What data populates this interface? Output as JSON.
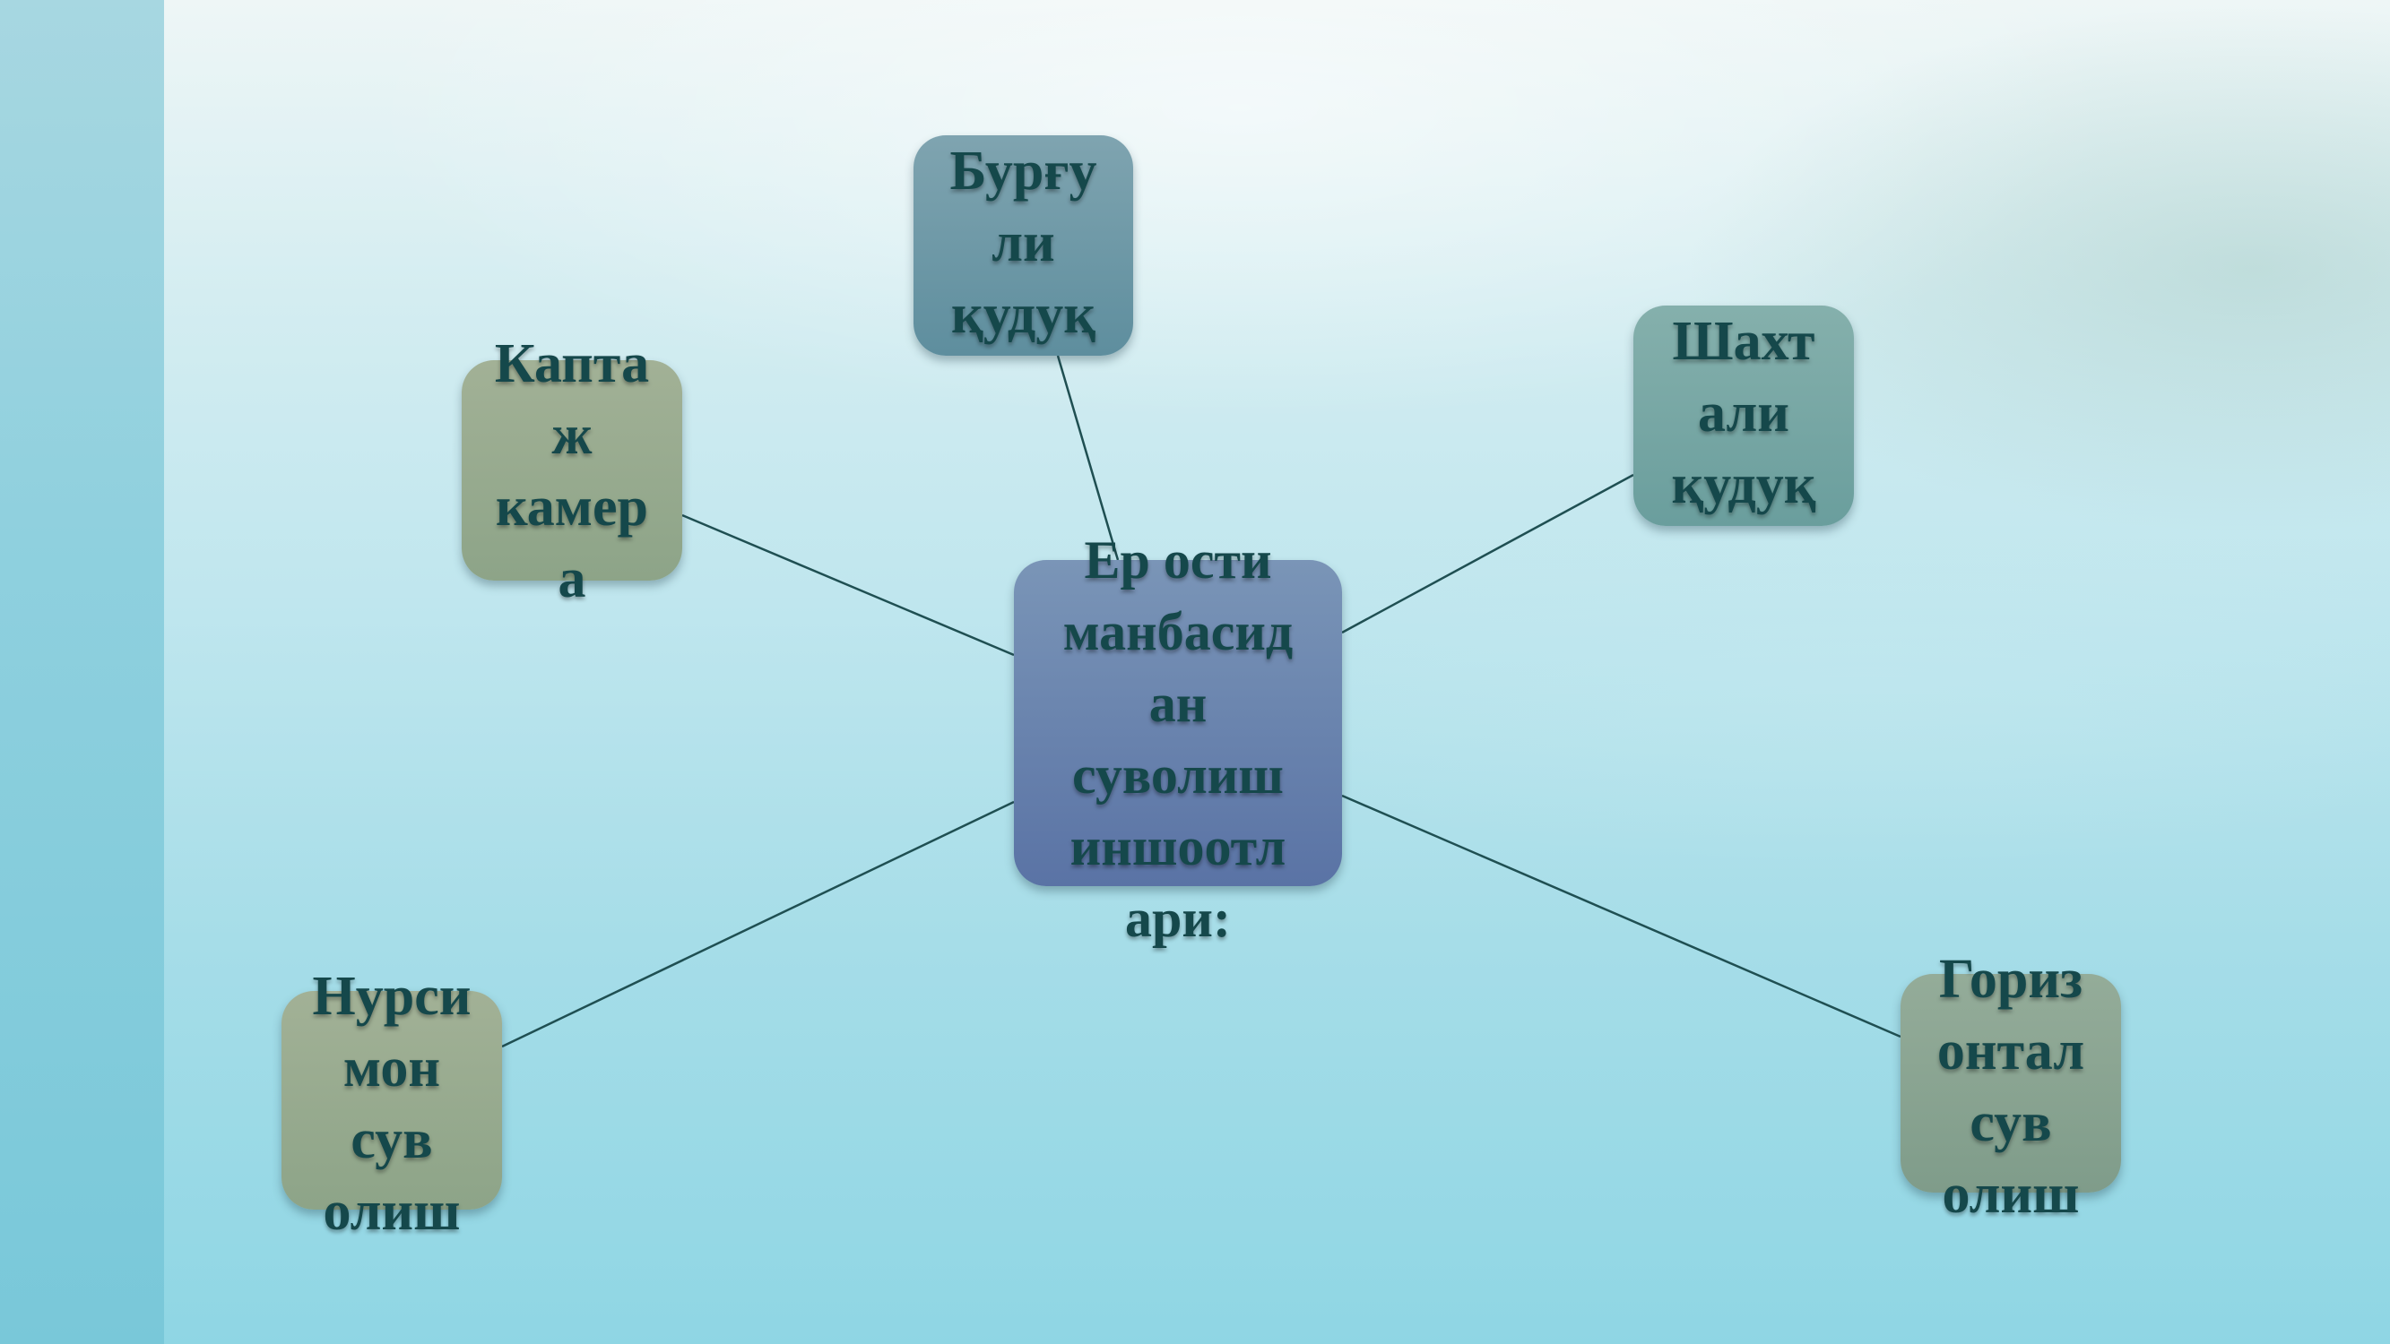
{
  "diagram": {
    "center": {
      "label": "Ер ости\nманбасид\nан\nсуволиш\nиншоотл\nари:"
    },
    "nodes": {
      "top": {
        "label": "Бурғу\nли\nқудуқ"
      },
      "right": {
        "label": "Шахт\nали\nқудуқ"
      },
      "left": {
        "label": "Капта\nж\nкамер\nа"
      },
      "bottom_left": {
        "label": "Нурси\nмон\nсув\nолиш"
      },
      "bottom_right": {
        "label": "Гориз\nонтал\nсув\nолиш"
      }
    }
  },
  "colors": {
    "connector": "#1f4f52",
    "label_text": "#15484b",
    "center_fill": "#6983ae",
    "top_fill": "#6f98a6",
    "right_fill": "#78a6a4",
    "left_fill": "#97aa8f",
    "bottom_left_fill": "#97aa8f",
    "bottom_right_fill": "#89a491"
  }
}
